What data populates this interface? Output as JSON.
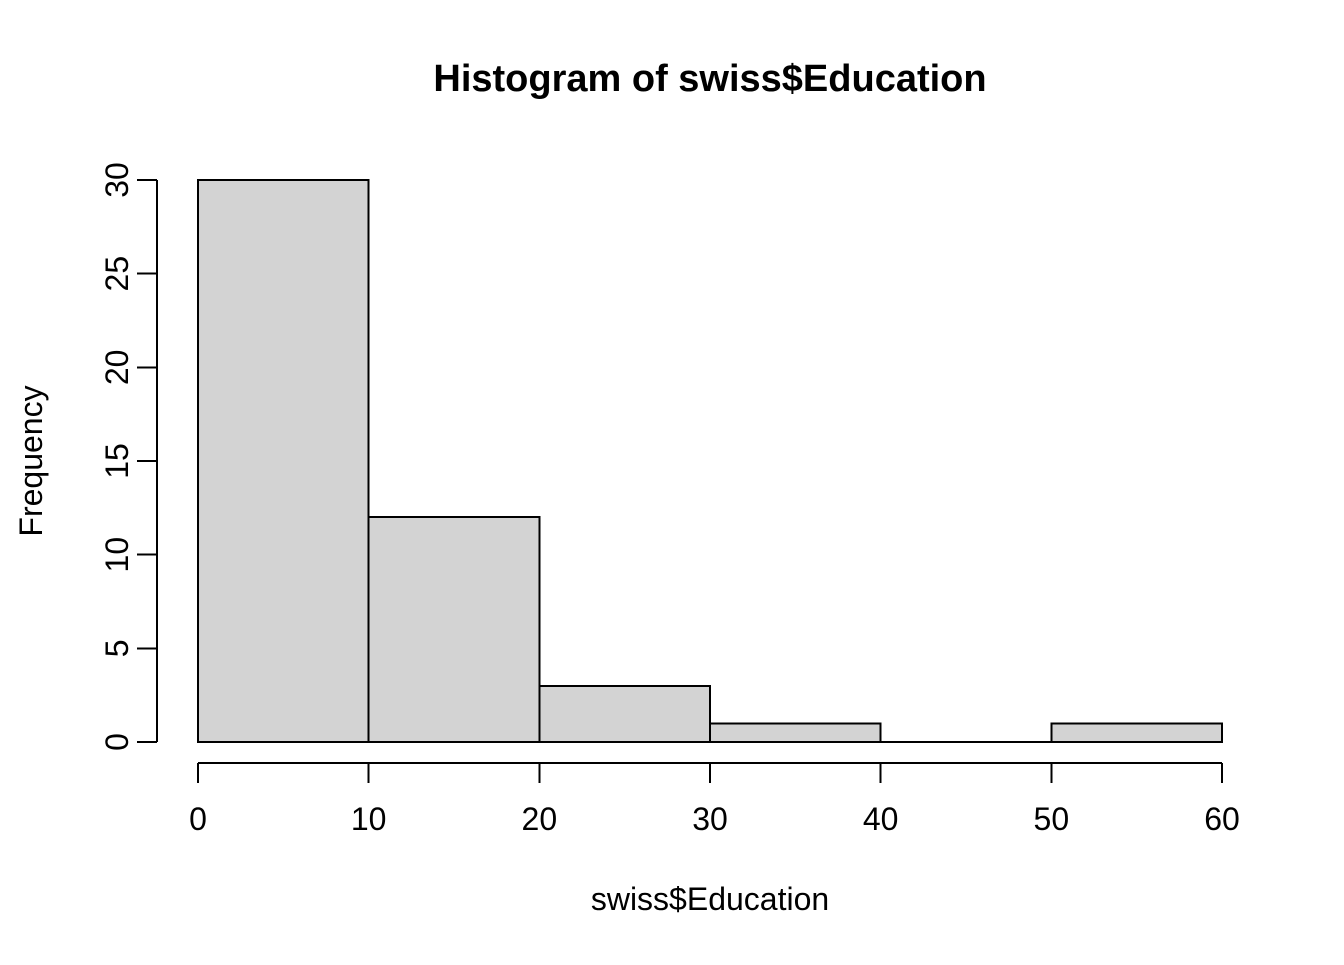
{
  "page": {
    "background": "#ffffff"
  },
  "chart_data": {
    "type": "bar",
    "subtype": "histogram",
    "title": "Histogram of swiss$Education",
    "xlabel": "swiss$Education",
    "ylabel": "Frequency",
    "bin_edges": [
      0,
      10,
      20,
      30,
      40,
      50,
      60
    ],
    "counts": [
      30,
      12,
      3,
      1,
      0,
      1
    ],
    "x_ticks": [
      0,
      10,
      20,
      30,
      40,
      50,
      60
    ],
    "y_ticks": [
      0,
      5,
      10,
      15,
      20,
      25,
      30
    ],
    "xlim": [
      0,
      60
    ],
    "ylim": [
      0,
      30
    ],
    "grid": false,
    "legend": "none",
    "colors": {
      "bar_fill": "#d3d3d3",
      "bar_border": "#000000",
      "axis": "#000000",
      "text": "#000000",
      "background": "#ffffff"
    }
  }
}
